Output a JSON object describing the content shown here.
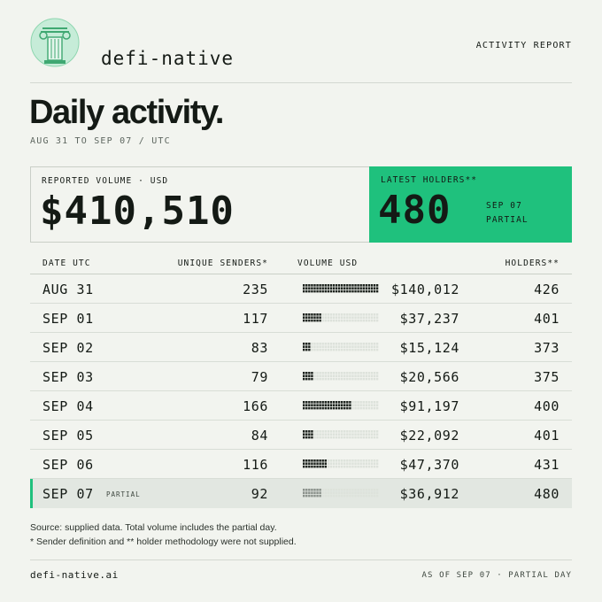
{
  "header": {
    "brand": "defi-native",
    "report_label": "ACTIVITY REPORT",
    "logo_icon": "ionic-column-logo-icon"
  },
  "title": "Daily activity.",
  "subtitle": "AUG 31 TO SEP 07 / UTC",
  "summary": {
    "volume_label": "REPORTED VOLUME · USD",
    "volume_value": "$410,510",
    "holders_label": "LATEST HOLDERS**",
    "holders_value": "480",
    "holders_date": "SEP 07",
    "holders_status": "PARTIAL"
  },
  "table": {
    "headers": {
      "date": "DATE UTC",
      "senders": "UNIQUE SENDERS*",
      "volume": "VOLUME USD",
      "holders": "HOLDERS**"
    },
    "rows": [
      {
        "date": "AUG 31",
        "senders": "235",
        "volume": "$140,012",
        "holders": "426",
        "volume_fraction": 1.0,
        "partial": false
      },
      {
        "date": "SEP 01",
        "senders": "117",
        "volume": "$37,237",
        "holders": "401",
        "volume_fraction": 0.266,
        "partial": false
      },
      {
        "date": "SEP 02",
        "senders": "83",
        "volume": "$15,124",
        "holders": "373",
        "volume_fraction": 0.108,
        "partial": false
      },
      {
        "date": "SEP 03",
        "senders": "79",
        "volume": "$20,566",
        "holders": "375",
        "volume_fraction": 0.147,
        "partial": false
      },
      {
        "date": "SEP 04",
        "senders": "166",
        "volume": "$91,197",
        "holders": "400",
        "volume_fraction": 0.651,
        "partial": false
      },
      {
        "date": "SEP 05",
        "senders": "84",
        "volume": "$22,092",
        "holders": "401",
        "volume_fraction": 0.158,
        "partial": false
      },
      {
        "date": "SEP 06",
        "senders": "116",
        "volume": "$47,370",
        "holders": "431",
        "volume_fraction": 0.338,
        "partial": false
      },
      {
        "date": "SEP 07",
        "senders": "92",
        "volume": "$36,912",
        "holders": "480",
        "volume_fraction": 0.264,
        "partial": true,
        "tag": "PARTIAL"
      }
    ]
  },
  "notes": {
    "line1": "Source: supplied data. Total volume includes the partial day.",
    "line2": "* Sender definition and ** holder methodology were not supplied."
  },
  "footer": {
    "site": "defi-native.ai",
    "as_of": "AS OF SEP 07 · PARTIAL DAY"
  },
  "colors": {
    "accent": "#1fc17d",
    "background": "#f2f4ef",
    "ink": "#141a15"
  }
}
